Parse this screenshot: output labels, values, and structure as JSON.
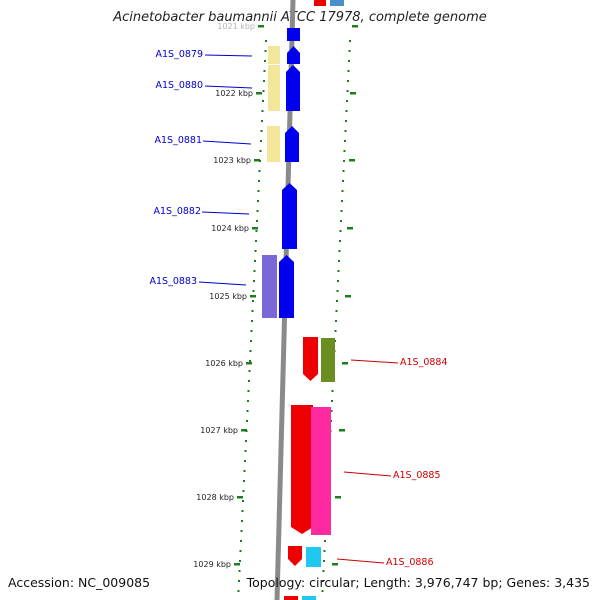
{
  "title": "Acinetobacter baumannii ATCC 17978, complete genome",
  "footer": {
    "accession": "Accession: NC_009085",
    "topology": "Topology: circular; Length: 3,976,747 bp; Genes: 3,435"
  },
  "colors": {
    "backbone": "#8a8a8a",
    "tick": "#1e7d1e",
    "forward_gene": "#0000ee",
    "reverse_gene": "#ee0000",
    "forward_label": "#0000cc",
    "reverse_label": "#cc0000"
  },
  "ticks": [
    {
      "label": "1021 kbp"
    },
    {
      "label": "1022 kbp"
    },
    {
      "label": "1023 kbp"
    },
    {
      "label": "1024 kbp"
    },
    {
      "label": "1025 kbp"
    },
    {
      "label": "1026 kbp"
    },
    {
      "label": "1027 kbp"
    },
    {
      "label": "1028 kbp"
    },
    {
      "label": "1029 kbp"
    }
  ],
  "genes": [
    {
      "label": "A1S_0879",
      "strand": "forward"
    },
    {
      "label": "A1S_0880",
      "strand": "forward"
    },
    {
      "label": "A1S_0881",
      "strand": "forward"
    },
    {
      "label": "A1S_0882",
      "strand": "forward"
    },
    {
      "label": "A1S_0883",
      "strand": "forward"
    },
    {
      "label": "A1S_0884",
      "strand": "reverse"
    },
    {
      "label": "A1S_0885",
      "strand": "reverse"
    },
    {
      "label": "A1S_0886",
      "strand": "reverse"
    }
  ]
}
